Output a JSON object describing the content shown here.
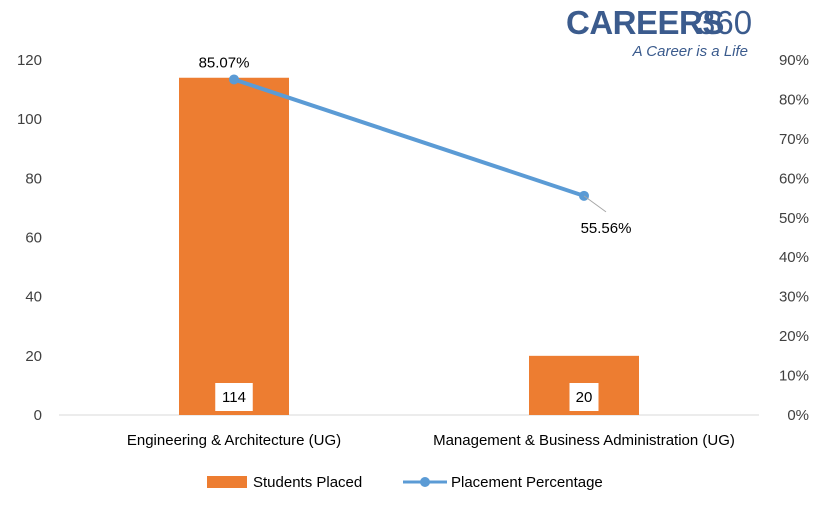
{
  "logo": {
    "main": "CAREERS",
    "number": "360",
    "tagline": "A Career is a Life"
  },
  "colors": {
    "bar": "#ed7d31",
    "line": "#5b9bd5",
    "axis": "#d9d9d9",
    "logo": "#3b5b8d"
  },
  "chart_data": {
    "type": "bar",
    "categories": [
      "Engineering & Architecture (UG)",
      "Management & Business Administration (UG)"
    ],
    "series": [
      {
        "name": "Students Placed",
        "type": "bar",
        "axis": "left",
        "values": [
          114,
          20
        ],
        "labels": [
          "114",
          "20"
        ]
      },
      {
        "name": "Placement Percentage",
        "type": "line",
        "axis": "right",
        "values": [
          85.07,
          55.56
        ],
        "labels": [
          "85.07%",
          "55.56%"
        ]
      }
    ],
    "y_left": {
      "ylim": [
        0,
        120
      ],
      "ticks": [
        "0",
        "20",
        "40",
        "60",
        "80",
        "100",
        "120"
      ]
    },
    "y_right": {
      "ylim": [
        0,
        90
      ],
      "ticks": [
        "0%",
        "10%",
        "20%",
        "30%",
        "40%",
        "50%",
        "60%",
        "70%",
        "80%",
        "90%"
      ]
    },
    "grid": false,
    "legend": "bottom"
  }
}
